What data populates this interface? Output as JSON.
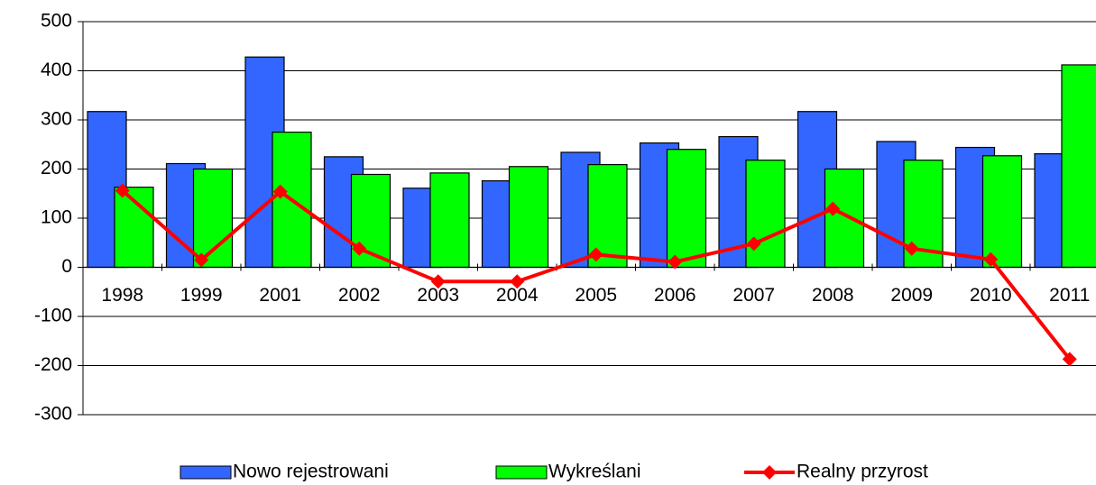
{
  "chart_data": {
    "type": "bar-line",
    "categories": [
      "1998",
      "1999",
      "2001",
      "2002",
      "2003",
      "2004",
      "2005",
      "2006",
      "2007",
      "2008",
      "2009",
      "2010",
      "2011"
    ],
    "series": [
      {
        "name": "Nowo rejestrowani",
        "type": "bar",
        "color": "#3366ff",
        "values": [
          317,
          211,
          428,
          225,
          161,
          176,
          234,
          253,
          266,
          317,
          256,
          244,
          231
        ]
      },
      {
        "name": "Wykreślani",
        "type": "bar",
        "color": "#00ff00",
        "values": [
          163,
          200,
          275,
          189,
          192,
          205,
          209,
          240,
          218,
          200,
          218,
          227,
          412
        ]
      },
      {
        "name": "Realny przyrost",
        "type": "line",
        "color": "#ff0000",
        "values": [
          156,
          15,
          154,
          38,
          -29,
          -29,
          26,
          11,
          48,
          119,
          38,
          16,
          -187
        ]
      }
    ],
    "ylim": [
      -300,
      500
    ],
    "yticks": [
      -300,
      -200,
      -100,
      0,
      100,
      200,
      300,
      400,
      500
    ],
    "grid": true,
    "legend": "bottom"
  }
}
